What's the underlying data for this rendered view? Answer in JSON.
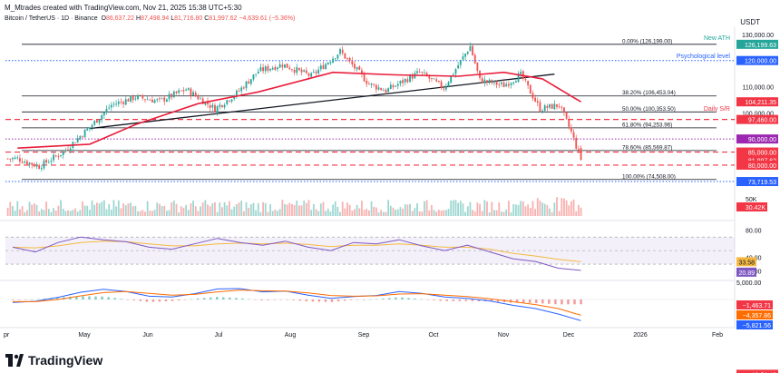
{
  "header": {
    "caption": "M_Mtrades created with TradingView.com, Nov 21, 2025 15:38 UTC+5:30",
    "symbol": "Bitcoin / TetherUS · 1D · Binance",
    "ohlc": {
      "O": "86,637.22",
      "H": "87,498.94",
      "L": "81,716.80",
      "C": "81,997.62",
      "change": "−4,639.61 (−5.36%)"
    },
    "currency": "USDT"
  },
  "price_axis": {
    "ticks": [
      "130,000.00",
      "110,000.00",
      "100,000.00",
      "90,000.00",
      "80,000.00"
    ],
    "ath_badge": "126,199.63",
    "badges": [
      {
        "text": "126,199.63",
        "bg": "#26a69a"
      },
      {
        "text": "120,000.00",
        "bg": "#2962ff"
      },
      {
        "text": "104,211.35",
        "bg": "#f23645"
      },
      {
        "text": "97,460.00",
        "bg": "#f23645"
      },
      {
        "text": "90,000.00",
        "bg": "#9c27b0"
      },
      {
        "text": "85,000.00",
        "bg": "#f23645"
      },
      {
        "text": "81,997.62",
        "bg": "#f23645"
      },
      {
        "text": "13:51:46",
        "bg": "#f23645"
      },
      {
        "text": "80,000.00",
        "bg": "#f23645"
      },
      {
        "text": "73,719.53",
        "bg": "#2962ff"
      }
    ]
  },
  "annotations": {
    "new_ath": "New ATH",
    "psychological": "Psychological level",
    "daily_sr": "Daily S/R"
  },
  "fib_levels": [
    {
      "label": "0.00% (126,199.00)",
      "price": 126199
    },
    {
      "label": "38.20% (106,453.04)",
      "price": 106453
    },
    {
      "label": "50.00% (100,353.50)",
      "price": 100353
    },
    {
      "label": "61.80% (94,253.96)",
      "price": 94254
    },
    {
      "label": "78.60% (85,569.87)",
      "price": 85570
    },
    {
      "label": "100.00% (74,508.00)",
      "price": 74508
    }
  ],
  "volume_axis": {
    "tick": "50K",
    "badge": "30.42K"
  },
  "rsi_axis": {
    "ticks": [
      "80.00",
      "40.00",
      "20.00"
    ],
    "badges": [
      "33.58",
      "20.89"
    ]
  },
  "macd_axis": {
    "ticks": [
      "5,000.00"
    ],
    "badges": [
      "−1,463.71",
      "−4,357.86",
      "−5,821.56"
    ]
  },
  "time_axis": [
    "pr",
    "May",
    "Jun",
    "Jul",
    "Aug",
    "Sep",
    "Oct",
    "Nov",
    "Dec",
    "2026",
    "Feb"
  ],
  "logo": "TradingView",
  "colors": {
    "up": "#26a69a",
    "down": "#ef5350",
    "ma": "#e91e3c",
    "rsi": "#7e57c2",
    "rsi_ma": "#f5b942",
    "macd": "#2962ff",
    "signal": "#ff6d00"
  },
  "chart_data": [
    {
      "type": "candlestick",
      "title": "Bitcoin / TetherUS · 1D · Binance",
      "ylim": [
        72000,
        131000
      ],
      "ohlc_last": {
        "open": 86637.22,
        "high": 87498.94,
        "low": 81716.8,
        "close": 81997.62
      },
      "key_levels": {
        "new_ath": 126199.63,
        "psychological": 120000,
        "daily_sr": 97460,
        "round": [
          90000,
          85000,
          80000
        ],
        "low": 73719.53
      },
      "close_path": [
        [
          "2025-04-01",
          82500
        ],
        [
          "2025-04-10",
          79500
        ],
        [
          "2025-04-20",
          85000
        ],
        [
          "2025-05-01",
          94500
        ],
        [
          "2025-05-10",
          103000
        ],
        [
          "2025-05-20",
          106000
        ],
        [
          "2025-05-30",
          104500
        ],
        [
          "2025-06-10",
          109000
        ],
        [
          "2025-06-22",
          101500
        ],
        [
          "2025-07-01",
          107500
        ],
        [
          "2025-07-10",
          116000
        ],
        [
          "2025-07-20",
          118500
        ],
        [
          "2025-08-01",
          114000
        ],
        [
          "2025-08-13",
          123500
        ],
        [
          "2025-08-25",
          111000
        ],
        [
          "2025-09-01",
          108500
        ],
        [
          "2025-09-15",
          115500
        ],
        [
          "2025-09-25",
          109500
        ],
        [
          "2025-10-06",
          125500
        ],
        [
          "2025-10-10",
          112500
        ],
        [
          "2025-10-20",
          110500
        ],
        [
          "2025-10-27",
          114500
        ],
        [
          "2025-11-04",
          101500
        ],
        [
          "2025-11-12",
          103000
        ],
        [
          "2025-11-17",
          92500
        ],
        [
          "2025-11-21",
          82000
        ]
      ],
      "moving_average_path": [
        [
          "2025-04-01",
          86500
        ],
        [
          "2025-05-01",
          88000
        ],
        [
          "2025-05-20",
          95500
        ],
        [
          "2025-06-15",
          103500
        ],
        [
          "2025-07-10",
          108000
        ],
        [
          "2025-08-10",
          115500
        ],
        [
          "2025-09-05",
          114500
        ],
        [
          "2025-10-01",
          114000
        ],
        [
          "2025-10-20",
          115500
        ],
        [
          "2025-11-05",
          113000
        ],
        [
          "2025-11-21",
          104211.35
        ]
      ]
    },
    {
      "type": "bar",
      "title": "Volume",
      "last_value": "30.42K"
    },
    {
      "type": "line",
      "title": "RSI",
      "ylim": [
        10,
        85
      ],
      "series": [
        {
          "values": [
            55,
            48,
            62,
            70,
            66,
            63,
            55,
            52,
            60,
            68,
            62,
            58,
            64,
            55,
            50,
            62,
            60,
            66,
            57,
            50,
            58,
            48,
            38,
            34,
            24,
            20.89
          ]
        },
        {
          "values": [
            55,
            54,
            57,
            62,
            64,
            63,
            60,
            57,
            57,
            60,
            61,
            60,
            61,
            59,
            56,
            58,
            58,
            60,
            58,
            55,
            55,
            52,
            46,
            42,
            37,
            33.58
          ]
        }
      ]
    },
    {
      "type": "line",
      "title": "MACD",
      "series": [
        {
          "values": [
            -800,
            -500,
            600,
            2000,
            2800,
            2200,
            900,
            700,
            1600,
            2900,
            3000,
            2100,
            2300,
            1200,
            300,
            800,
            1100,
            2200,
            1700,
            700,
            300,
            -400,
            -1600,
            -2500,
            -4000,
            -5821.56
          ]
        },
        {
          "values": [
            -600,
            -600,
            0,
            1000,
            1900,
            2200,
            1700,
            1200,
            1400,
            2100,
            2600,
            2400,
            2300,
            1800,
            1100,
            900,
            1000,
            1500,
            1600,
            1200,
            800,
            200,
            -600,
            -1400,
            -2500,
            -4357.86
          ]
        }
      ],
      "histogram_last": -1463.71
    }
  ]
}
